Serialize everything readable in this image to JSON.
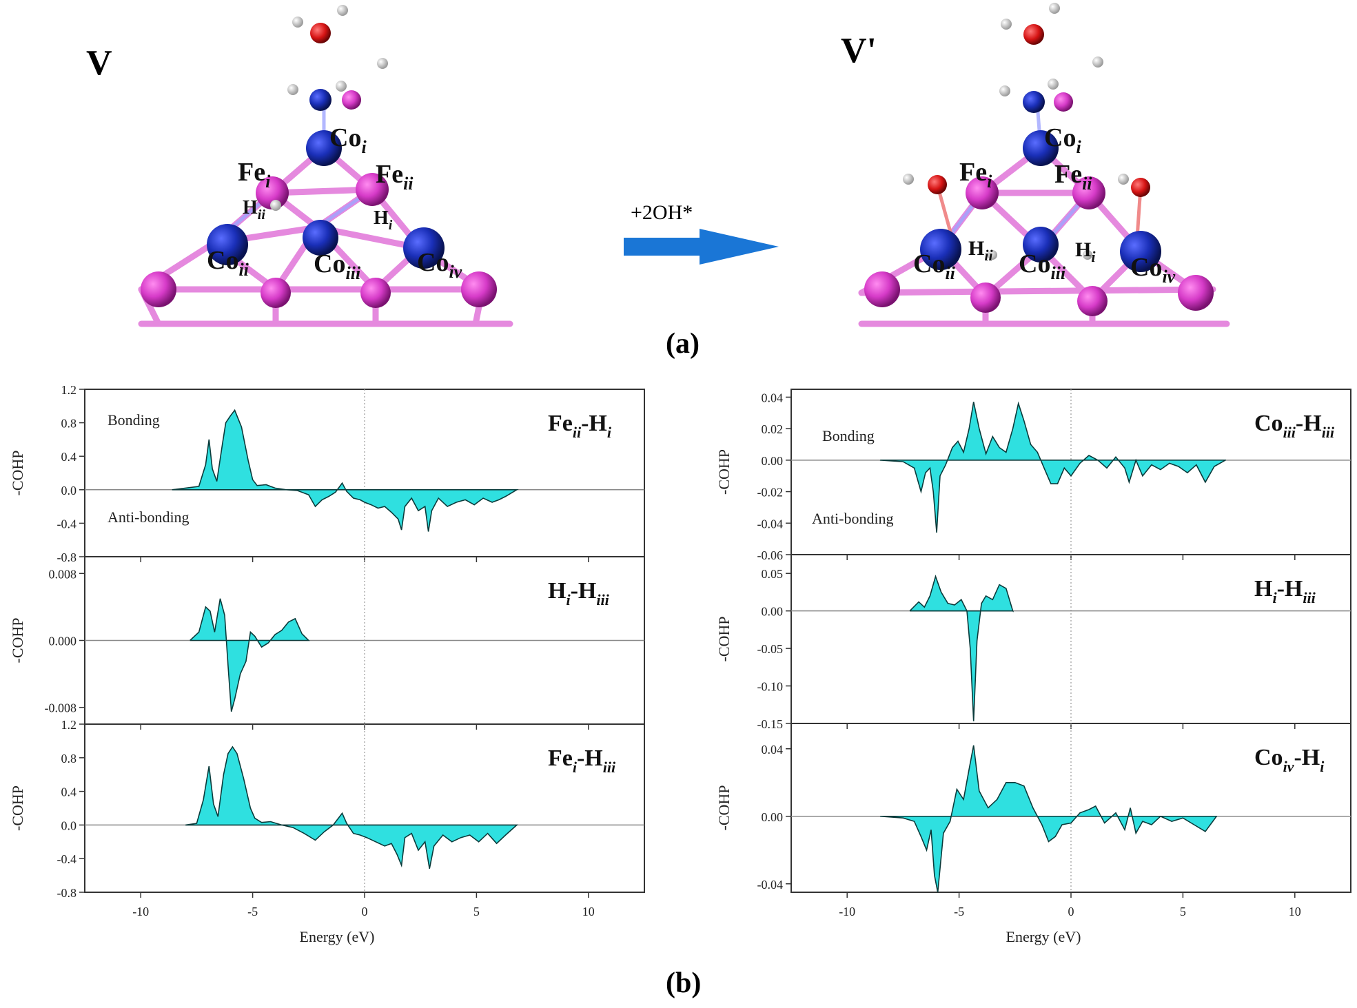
{
  "panel_a": {
    "label": "(a)",
    "left_state": "V",
    "right_state": "V'",
    "arrow_label": "+2OH*",
    "left_atom_labels": [
      "Co",
      "i",
      "Fe",
      "i",
      "Fe",
      "ii",
      "H",
      "ii",
      "H",
      "i",
      "Co",
      "ii",
      "Co",
      "iii",
      "Co",
      "iv"
    ],
    "right_atom_labels": [
      "Co",
      "i",
      "Fe",
      "i",
      "Fe",
      "ii",
      "H",
      "ii",
      "H",
      "i",
      "Co",
      "ii",
      "Co",
      "iii",
      "Co",
      "iv"
    ]
  },
  "panel_b": {
    "label": "(b)"
  },
  "colors": {
    "fill": "#2fe0e0",
    "fe": "#d63bc8",
    "co": "#1a2fb8",
    "oxygen": "#d61414",
    "arrow": "#1a76d6"
  },
  "chart_data": [
    {
      "type": "area",
      "title": "Fe_ii-H_i",
      "title_main": "Fe",
      "title_sub1": "ii",
      "title_mid": "-H",
      "title_sub2": "i",
      "ylabel": "-COHP",
      "xlabel": "Energy (eV)",
      "xlim": [
        -12.5,
        12.5
      ],
      "ylim": [
        -0.8,
        1.2
      ],
      "yticks": [
        "1.2",
        "0.8",
        "0.4",
        "0.0",
        "-0.4",
        "-0.8"
      ],
      "xticks": [
        "-10",
        "-5",
        "0",
        "5",
        "10"
      ],
      "annotations": [
        "Bonding",
        "Anti-bonding"
      ],
      "x": [
        -8.6,
        -8.0,
        -7.4,
        -7.1,
        -6.95,
        -6.8,
        -6.6,
        -6.35,
        -6.2,
        -6.0,
        -5.8,
        -5.5,
        -5.2,
        -5.0,
        -4.8,
        -4.4,
        -4.0,
        -3.5,
        -3.0,
        -2.5,
        -2.2,
        -1.9,
        -1.6,
        -1.3,
        -1.0,
        -0.8,
        -0.5,
        -0.2,
        0.0,
        0.3,
        0.6,
        0.9,
        1.2,
        1.5,
        1.65,
        1.8,
        2.1,
        2.4,
        2.7,
        2.85,
        3.0,
        3.3,
        3.7,
        4.1,
        4.5,
        4.9,
        5.3,
        5.7,
        6.0,
        6.3,
        6.8
      ],
      "values": [
        0.0,
        0.02,
        0.04,
        0.3,
        0.6,
        0.25,
        0.1,
        0.55,
        0.8,
        0.88,
        0.95,
        0.75,
        0.35,
        0.12,
        0.05,
        0.06,
        0.02,
        0.0,
        -0.01,
        -0.06,
        -0.2,
        -0.12,
        -0.08,
        -0.03,
        0.08,
        -0.02,
        -0.1,
        -0.12,
        -0.15,
        -0.18,
        -0.22,
        -0.2,
        -0.27,
        -0.35,
        -0.48,
        -0.2,
        -0.1,
        -0.25,
        -0.2,
        -0.5,
        -0.25,
        -0.1,
        -0.2,
        -0.15,
        -0.12,
        -0.18,
        -0.1,
        -0.15,
        -0.12,
        -0.08,
        0.0
      ]
    },
    {
      "type": "area",
      "title": "H_i-H_iii",
      "title_main": "H",
      "title_sub1": "i",
      "title_mid": "-H",
      "title_sub2": "iii",
      "ylabel": "-COHP",
      "xlabel": "Energy (eV)",
      "xlim": [
        -12.5,
        12.5
      ],
      "ylim": [
        -0.01,
        0.01
      ],
      "yticks": [
        "0.008",
        "0.000",
        "-0.008"
      ],
      "xticks": [
        "-10",
        "-5",
        "0",
        "5",
        "10"
      ],
      "x": [
        -7.8,
        -7.4,
        -7.1,
        -6.9,
        -6.7,
        -6.45,
        -6.25,
        -6.1,
        -5.95,
        -5.8,
        -5.55,
        -5.3,
        -5.1,
        -4.9,
        -4.6,
        -4.3,
        -4.0,
        -3.7,
        -3.4,
        -3.1,
        -2.8,
        -2.5
      ],
      "values": [
        0.0,
        0.001,
        0.004,
        0.0035,
        0.001,
        0.005,
        0.003,
        -0.003,
        -0.0085,
        -0.007,
        -0.004,
        -0.0025,
        0.001,
        0.0005,
        -0.0008,
        -0.0003,
        0.0007,
        0.0012,
        0.0022,
        0.0026,
        0.0008,
        0.0
      ]
    },
    {
      "type": "area",
      "title": "Fe_i-H_iii",
      "title_main": "Fe",
      "title_sub1": "i",
      "title_mid": "-H",
      "title_sub2": "iii",
      "ylabel": "-COHP",
      "xlabel": "Energy (eV)",
      "xlim": [
        -12.5,
        12.5
      ],
      "ylim": [
        -0.8,
        1.2
      ],
      "yticks": [
        "1.2",
        "0.8",
        "0.4",
        "0.0",
        "-0.4",
        "-0.8"
      ],
      "xticks": [
        "-10",
        "-5",
        "0",
        "5",
        "10"
      ],
      "x": [
        -8.0,
        -7.5,
        -7.2,
        -6.95,
        -6.75,
        -6.55,
        -6.3,
        -6.1,
        -5.9,
        -5.7,
        -5.4,
        -5.1,
        -4.9,
        -4.6,
        -4.2,
        -3.7,
        -3.2,
        -2.7,
        -2.2,
        -1.8,
        -1.4,
        -1.0,
        -0.8,
        -0.5,
        -0.2,
        0.1,
        0.5,
        0.9,
        1.2,
        1.45,
        1.65,
        1.8,
        2.1,
        2.4,
        2.7,
        2.9,
        3.1,
        3.5,
        3.9,
        4.3,
        4.7,
        5.1,
        5.5,
        5.9,
        6.3,
        6.8
      ],
      "values": [
        0.0,
        0.02,
        0.3,
        0.7,
        0.25,
        0.1,
        0.6,
        0.85,
        0.93,
        0.85,
        0.55,
        0.2,
        0.08,
        0.03,
        0.04,
        0.0,
        -0.03,
        -0.1,
        -0.18,
        -0.08,
        0.0,
        0.14,
        0.02,
        -0.1,
        -0.12,
        -0.15,
        -0.2,
        -0.25,
        -0.22,
        -0.35,
        -0.48,
        -0.15,
        -0.1,
        -0.3,
        -0.2,
        -0.52,
        -0.25,
        -0.12,
        -0.2,
        -0.15,
        -0.12,
        -0.2,
        -0.1,
        -0.22,
        -0.12,
        0.0
      ]
    },
    {
      "type": "area",
      "title": "Co_iii-H_iii",
      "title_main": "Co",
      "title_sub1": "iii",
      "title_mid": "-H",
      "title_sub2": "iii",
      "ylabel": "-COHP",
      "xlabel": "Energy (eV)",
      "xlim": [
        -12.5,
        12.5
      ],
      "ylim": [
        -0.06,
        0.045
      ],
      "yticks": [
        "0.04",
        "0.02",
        "0.00",
        "-0.02",
        "-0.04",
        "-0.06"
      ],
      "xticks": [
        "-10",
        "-5",
        "0",
        "5",
        "10"
      ],
      "annotations": [
        "Bonding",
        "Anti-bonding"
      ],
      "x": [
        -8.5,
        -7.5,
        -7.0,
        -6.7,
        -6.5,
        -6.3,
        -6.15,
        -6.0,
        -5.85,
        -5.6,
        -5.3,
        -5.05,
        -4.8,
        -4.55,
        -4.35,
        -4.1,
        -3.8,
        -3.5,
        -3.2,
        -2.9,
        -2.6,
        -2.35,
        -2.1,
        -1.8,
        -1.5,
        -1.2,
        -0.9,
        -0.6,
        -0.3,
        0.0,
        0.4,
        0.8,
        1.2,
        1.6,
        2.0,
        2.4,
        2.6,
        2.9,
        3.2,
        3.6,
        4.0,
        4.4,
        4.8,
        5.2,
        5.6,
        6.0,
        6.4,
        6.9
      ],
      "values": [
        0.0,
        -0.001,
        -0.005,
        -0.02,
        -0.008,
        -0.005,
        -0.02,
        -0.046,
        -0.01,
        -0.003,
        0.008,
        0.012,
        0.005,
        0.02,
        0.037,
        0.02,
        0.004,
        0.015,
        0.008,
        0.005,
        0.02,
        0.036,
        0.025,
        0.01,
        0.005,
        -0.005,
        -0.015,
        -0.015,
        -0.005,
        -0.01,
        -0.002,
        0.003,
        0.0,
        -0.005,
        0.002,
        -0.005,
        -0.014,
        0.0,
        -0.01,
        -0.003,
        -0.006,
        -0.002,
        -0.004,
        -0.008,
        -0.003,
        -0.014,
        -0.004,
        0.0
      ]
    },
    {
      "type": "area",
      "title": "H_i-H_iii",
      "title_main": "H",
      "title_sub1": "i",
      "title_mid": "-H",
      "title_sub2": "iii",
      "ylabel": "-COHP",
      "xlabel": "Energy (eV)",
      "xlim": [
        -12.5,
        12.5
      ],
      "ylim": [
        -0.15,
        0.075
      ],
      "yticks": [
        "0.05",
        "0.00",
        "-0.05",
        "-0.10",
        "-0.15"
      ],
      "xticks": [
        "-10",
        "-5",
        "0",
        "5",
        "10"
      ],
      "x": [
        -7.2,
        -6.8,
        -6.55,
        -6.3,
        -6.05,
        -5.8,
        -5.5,
        -5.2,
        -4.9,
        -4.65,
        -4.5,
        -4.35,
        -4.2,
        -4.0,
        -3.8,
        -3.5,
        -3.2,
        -2.9,
        -2.6
      ],
      "values": [
        0.0,
        0.012,
        0.005,
        0.02,
        0.046,
        0.025,
        0.01,
        0.008,
        0.015,
        0.0,
        -0.05,
        -0.147,
        -0.04,
        0.01,
        0.02,
        0.015,
        0.035,
        0.03,
        0.0
      ]
    },
    {
      "type": "area",
      "title": "Co_iv-H_i",
      "title_main": "Co",
      "title_sub1": "iv",
      "title_mid": "-H",
      "title_sub2": "i",
      "ylabel": "-COHP",
      "xlabel": "Energy (eV)",
      "xlim": [
        -12.5,
        12.5
      ],
      "ylim": [
        -0.045,
        0.055
      ],
      "yticks": [
        "0.04",
        "0.00",
        "-0.04"
      ],
      "xticks": [
        "-10",
        "-5",
        "0",
        "5",
        "10"
      ],
      "x": [
        -8.5,
        -7.5,
        -7.0,
        -6.7,
        -6.45,
        -6.25,
        -6.1,
        -5.95,
        -5.7,
        -5.4,
        -5.1,
        -4.8,
        -4.55,
        -4.35,
        -4.1,
        -3.7,
        -3.3,
        -2.9,
        -2.5,
        -2.1,
        -1.7,
        -1.3,
        -1.0,
        -0.7,
        -0.4,
        0.0,
        0.4,
        0.8,
        1.1,
        1.5,
        2.0,
        2.4,
        2.65,
        2.9,
        3.2,
        3.6,
        4.0,
        4.5,
        5.0,
        5.5,
        6.0,
        6.5
      ],
      "values": [
        0.0,
        -0.001,
        -0.003,
        -0.012,
        -0.02,
        -0.008,
        -0.035,
        -0.045,
        -0.01,
        -0.003,
        0.016,
        0.01,
        0.028,
        0.042,
        0.015,
        0.005,
        0.01,
        0.02,
        0.02,
        0.018,
        0.005,
        -0.005,
        -0.015,
        -0.012,
        -0.005,
        -0.004,
        0.002,
        0.004,
        0.006,
        -0.004,
        0.002,
        -0.008,
        0.005,
        -0.01,
        -0.003,
        -0.005,
        0.0,
        -0.003,
        -0.001,
        -0.005,
        -0.009,
        0.0
      ]
    }
  ]
}
